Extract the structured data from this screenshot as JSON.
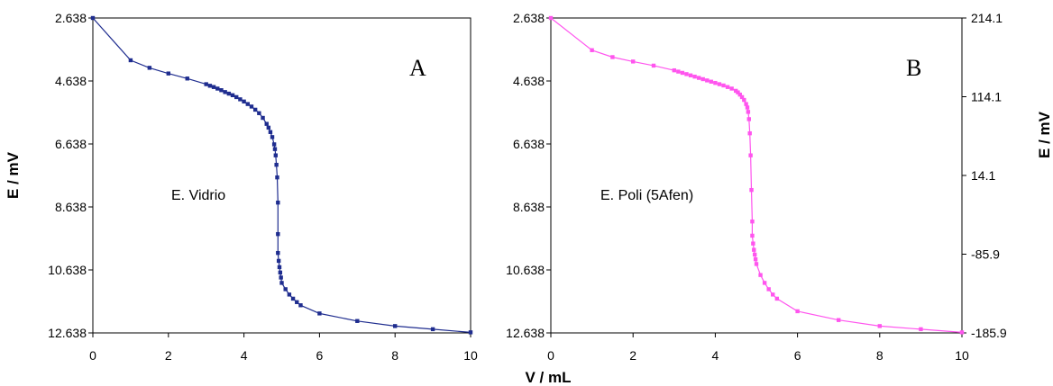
{
  "chart_data": {
    "type": "line",
    "xlabel": "V / mL",
    "ylabel_left": "E / mV",
    "ylabel_right": "E / mV",
    "xlim": [
      0,
      10
    ],
    "xticks": [
      "0",
      "2",
      "4",
      "6",
      "8",
      "10"
    ],
    "grid": false,
    "legend": "none",
    "panels": [
      {
        "letter": "A",
        "annotation": "E. Vidrio",
        "color": "#1f2d8f",
        "ylim": [
          2.638,
          12.638
        ],
        "y_inverted": true,
        "yticks_left": [
          "2.638",
          "4.638",
          "6.638",
          "8.638",
          "10.638",
          "12.638"
        ],
        "yticks_right": [],
        "x": [
          0,
          1,
          1.5,
          2,
          2.5,
          3,
          3.1,
          3.2,
          3.3,
          3.4,
          3.5,
          3.6,
          3.7,
          3.8,
          3.9,
          4.0,
          4.1,
          4.2,
          4.3,
          4.4,
          4.5,
          4.6,
          4.65,
          4.7,
          4.75,
          4.8,
          4.82,
          4.84,
          4.86,
          4.88,
          4.9,
          4.9,
          4.9,
          4.92,
          4.94,
          4.96,
          4.98,
          5.0,
          5.1,
          5.2,
          5.3,
          5.4,
          5.5,
          6,
          7,
          8,
          9,
          10
        ],
        "y": [
          2.638,
          3.98,
          4.22,
          4.4,
          4.56,
          4.74,
          4.79,
          4.83,
          4.88,
          4.93,
          4.99,
          5.04,
          5.09,
          5.15,
          5.22,
          5.29,
          5.37,
          5.45,
          5.55,
          5.66,
          5.81,
          6.0,
          6.12,
          6.26,
          6.42,
          6.65,
          6.8,
          7.0,
          7.3,
          7.7,
          8.5,
          9.5,
          10.1,
          10.35,
          10.55,
          10.72,
          10.88,
          11.05,
          11.25,
          11.42,
          11.55,
          11.66,
          11.76,
          12.02,
          12.26,
          12.42,
          12.52,
          12.62
        ]
      },
      {
        "letter": "B",
        "annotation": "E. Poli (5Afen)",
        "color": "#ff55ee",
        "ylim": [
          2.638,
          12.638
        ],
        "y_inverted": true,
        "yticks_left": [
          "2.638",
          "4.638",
          "6.638",
          "8.638",
          "10.638",
          "12.638"
        ],
        "yticks_right": [
          "214.1",
          "114.1",
          "14.1",
          "-85.9",
          "-185.9"
        ],
        "x": [
          0,
          1,
          1.5,
          2,
          2.5,
          3,
          3.1,
          3.2,
          3.3,
          3.4,
          3.5,
          3.6,
          3.7,
          3.8,
          3.9,
          4.0,
          4.1,
          4.2,
          4.3,
          4.4,
          4.5,
          4.55,
          4.6,
          4.65,
          4.7,
          4.75,
          4.78,
          4.8,
          4.82,
          4.84,
          4.86,
          4.88,
          4.9,
          4.9,
          4.92,
          4.94,
          4.96,
          4.98,
          5.0,
          5.1,
          5.2,
          5.3,
          5.4,
          5.5,
          6,
          7,
          8,
          9,
          10
        ],
        "y": [
          2.638,
          3.66,
          3.88,
          4.02,
          4.15,
          4.3,
          4.34,
          4.38,
          4.42,
          4.46,
          4.5,
          4.54,
          4.58,
          4.62,
          4.66,
          4.7,
          4.74,
          4.78,
          4.83,
          4.88,
          4.95,
          5.0,
          5.07,
          5.15,
          5.24,
          5.37,
          5.48,
          5.62,
          5.85,
          6.3,
          7.0,
          8.1,
          9.1,
          9.55,
          9.8,
          10.0,
          10.15,
          10.3,
          10.45,
          10.8,
          11.05,
          11.25,
          11.42,
          11.55,
          11.95,
          12.23,
          12.42,
          12.52,
          12.62
        ]
      }
    ]
  }
}
